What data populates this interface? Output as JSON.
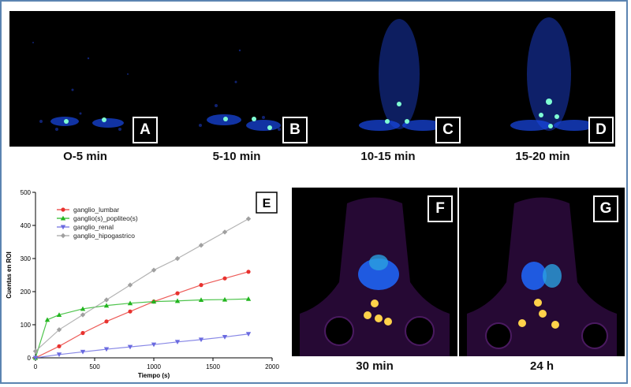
{
  "early_panels": [
    {
      "letter": "A",
      "time": "O-5 min"
    },
    {
      "letter": "B",
      "time": "5-10 min"
    },
    {
      "letter": "C",
      "time": "10-15 min"
    },
    {
      "letter": "D",
      "time": "15-20 min"
    }
  ],
  "late_panels": [
    {
      "letter": "F",
      "time": "30 min"
    },
    {
      "letter": "G",
      "time": "24 h"
    }
  ],
  "colors": {
    "accent_border": "#5b84b1"
  },
  "chart_data": {
    "type": "scatter",
    "panel_letter": "E",
    "xlabel": "Tiempo (s)",
    "ylabel": "Cuentas en ROI",
    "xlim": [
      0,
      2000
    ],
    "ylim": [
      0,
      500
    ],
    "xticks": [
      0,
      500,
      1000,
      1500,
      2000
    ],
    "yticks": [
      0,
      100,
      200,
      300,
      400,
      500
    ],
    "legend_position": "top-left",
    "series": [
      {
        "name": "ganglio_lumbar",
        "color": "#e8322e",
        "marker": "circle",
        "x": [
          0,
          200,
          400,
          600,
          800,
          1000,
          1200,
          1400,
          1600,
          1800
        ],
        "y": [
          0,
          35,
          75,
          110,
          140,
          170,
          195,
          220,
          240,
          260
        ]
      },
      {
        "name": "ganglio(s)_popliteo(s)",
        "color": "#22b51f",
        "marker": "triangle-up",
        "x": [
          0,
          100,
          200,
          400,
          600,
          800,
          1000,
          1200,
          1400,
          1600,
          1800
        ],
        "y": [
          0,
          115,
          130,
          148,
          158,
          165,
          170,
          172,
          175,
          176,
          178
        ]
      },
      {
        "name": "ganglio_renal",
        "color": "#6a6ae0",
        "marker": "triangle-down",
        "x": [
          0,
          200,
          400,
          600,
          800,
          1000,
          1200,
          1400,
          1600,
          1800
        ],
        "y": [
          0,
          10,
          18,
          26,
          33,
          40,
          48,
          55,
          63,
          72
        ]
      },
      {
        "name": "ganglio_hipogastrico",
        "color": "#a0a0a0",
        "marker": "diamond",
        "x": [
          0,
          200,
          400,
          600,
          800,
          1000,
          1200,
          1400,
          1600,
          1800
        ],
        "y": [
          20,
          85,
          130,
          175,
          220,
          265,
          300,
          340,
          380,
          420
        ]
      }
    ]
  }
}
